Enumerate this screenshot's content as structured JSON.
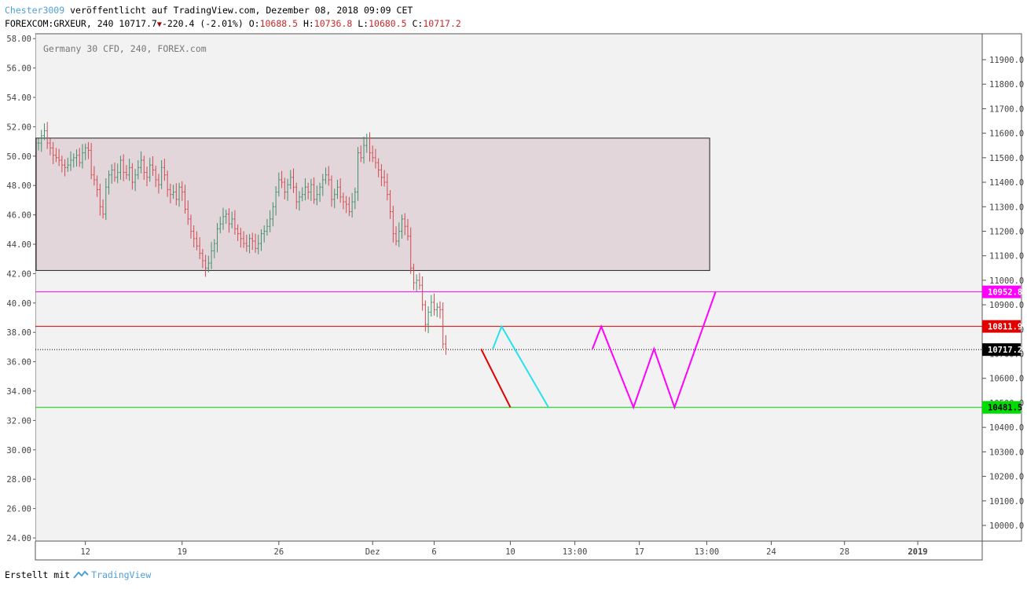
{
  "header": {
    "author": "Chester3009",
    "published": "veröffentlicht auf TradingView.com, Dezember 08, 2018 09:09 CET",
    "symbol_line": "FOREXCOM:GRXEUR, 240 10717.7",
    "change": "-220.4 (-2.01%)",
    "o_label": "O:",
    "o_value": "10688.5",
    "h_label": "H:",
    "h_value": "10736.8",
    "l_label": "L:",
    "l_value": "10680.5",
    "c_label": "C:",
    "c_value": "10717.2"
  },
  "footer": {
    "made_with": "Erstellt mit",
    "brand": "TradingView"
  },
  "colors": {
    "plot_bg": "#f2f2f2",
    "zone_fill": "#e2d6db",
    "up": "#3f8f6b",
    "down": "#d04a50",
    "magenta": "#ff00ff",
    "red": "#e00000",
    "cyan": "#27e1f0",
    "green": "#00cc00"
  },
  "chart_data": {
    "type": "line",
    "title": "Germany 30 CFD, 240, FOREX.com",
    "right_axis": {
      "ticks": [
        "10000.0",
        "10100.0",
        "10200.0",
        "10300.0",
        "10400.0",
        "10500.0",
        "10600.0",
        "10700.0",
        "10800.0",
        "10900.0",
        "11000.0",
        "11100.0",
        "11200.0",
        "11300.0",
        "11400.0",
        "11500.0",
        "11600.0",
        "11700.0",
        "11800.0",
        "11900.0"
      ],
      "range": [
        9960,
        11990
      ]
    },
    "left_axis": {
      "ticks": [
        "24.00",
        "26.00",
        "28.00",
        "30.00",
        "32.00",
        "34.00",
        "36.00",
        "38.00",
        "40.00",
        "42.00",
        "44.00",
        "46.00",
        "48.00",
        "50.00",
        "52.00",
        "54.00",
        "56.00",
        "58.00"
      ]
    },
    "x_labels": [
      "12",
      "19",
      "26",
      "Dez",
      "6",
      "10",
      "13:00",
      "17",
      "13:00",
      "24",
      "28",
      "2019"
    ],
    "x_label_bars": [
      16,
      49,
      82,
      114,
      135,
      161,
      183,
      205,
      228,
      250,
      275,
      300
    ],
    "levels": [
      {
        "name": "resistance",
        "value": 10952.8,
        "label": "10952.8",
        "color": "#ff00ff"
      },
      {
        "name": "level",
        "value": 10811.9,
        "label": "10811.9",
        "color": "#e00000"
      },
      {
        "name": "last",
        "value": 10717.2,
        "label": "10717.2",
        "color": "#000000"
      },
      {
        "name": "support",
        "value": 10481.5,
        "label": "10481.5",
        "color": "#00cc00"
      }
    ],
    "zone": {
      "bar_start": 0,
      "bar_end": 229,
      "price_top": 11580,
      "price_bottom": 11040
    },
    "price_bars": [
      11560,
      11590,
      11610,
      11560,
      11540,
      11510,
      11500,
      11490,
      11470,
      11460,
      11470,
      11490,
      11500,
      11510,
      11480,
      11520,
      11540,
      11530,
      11430,
      11410,
      11370,
      11300,
      11270,
      11380,
      11430,
      11450,
      11420,
      11440,
      11490,
      11440,
      11430,
      11460,
      11400,
      11430,
      11460,
      11490,
      11440,
      11420,
      11470,
      11450,
      11410,
      11390,
      11460,
      11430,
      11370,
      11350,
      11360,
      11330,
      11380,
      11360,
      11290,
      11250,
      11200,
      11170,
      11140,
      11110,
      11080,
      11050,
      11070,
      11120,
      11150,
      11210,
      11230,
      11260,
      11270,
      11230,
      11250,
      11210,
      11190,
      11170,
      11150,
      11140,
      11170,
      11160,
      11130,
      11150,
      11190,
      11200,
      11220,
      11250,
      11300,
      11360,
      11410,
      11400,
      11360,
      11390,
      11420,
      11380,
      11320,
      11340,
      11350,
      11380,
      11360,
      11390,
      11330,
      11350,
      11380,
      11410,
      11430,
      11410,
      11330,
      11350,
      11380,
      11340,
      11320,
      11310,
      11280,
      11320,
      11360,
      11520,
      11500,
      11550,
      11580,
      11520,
      11500,
      11480,
      11450,
      11420,
      11400,
      11350,
      11280,
      11190,
      11160,
      11200,
      11250,
      11220,
      11180,
      11050,
      10990,
      11000,
      10980,
      10900,
      10820,
      10870,
      10910,
      10880,
      10890,
      10880,
      10740,
      10720
    ],
    "projections": [
      {
        "name": "red-path",
        "color": "#e00000",
        "points": [
          [
            151,
            10720
          ],
          [
            161,
            10481.5
          ]
        ]
      },
      {
        "name": "cyan-path",
        "color": "#27e1f0",
        "points": [
          [
            155,
            10720
          ],
          [
            158,
            10811.9
          ],
          [
            174,
            10481.5
          ]
        ]
      },
      {
        "name": "magenta-path",
        "color": "#ff00ff",
        "points": [
          [
            189,
            10720
          ],
          [
            192,
            10811.9
          ],
          [
            203,
            10481.5
          ],
          [
            210,
            10720
          ],
          [
            217,
            10481.5
          ],
          [
            231,
            10952.8
          ]
        ]
      }
    ]
  }
}
